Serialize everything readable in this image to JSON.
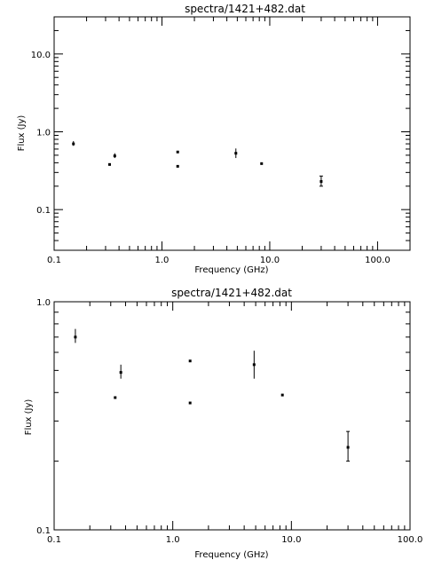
{
  "chart_data": [
    {
      "type": "scatter",
      "title": "spectra/1421+482.dat",
      "xlabel": "Frequency (GHz)",
      "ylabel": "Flux (Jy)",
      "xscale": "log",
      "yscale": "log",
      "xlim": [
        0.1,
        200
      ],
      "ylim": [
        0.03,
        30
      ],
      "xticks": [
        {
          "v": 0.1,
          "label": "0.1"
        },
        {
          "v": 1,
          "label": "1.0"
        },
        {
          "v": 10,
          "label": "10.0"
        },
        {
          "v": 100,
          "label": "100.0"
        }
      ],
      "yticks": [
        {
          "v": 0.1,
          "label": "0.1"
        },
        {
          "v": 1,
          "label": "1.0"
        },
        {
          "v": 10,
          "label": "10.0"
        }
      ],
      "points": [
        {
          "x": 0.151,
          "y": 0.7,
          "lo": 0.66,
          "hi": 0.76
        },
        {
          "x": 0.327,
          "y": 0.38,
          "lo": 0.38,
          "hi": 0.38
        },
        {
          "x": 0.365,
          "y": 0.49,
          "lo": 0.46,
          "hi": 0.53
        },
        {
          "x": 1.4,
          "y": 0.55,
          "lo": 0.55,
          "hi": 0.55
        },
        {
          "x": 1.4,
          "y": 0.36,
          "lo": 0.36,
          "hi": 0.36
        },
        {
          "x": 4.85,
          "y": 0.53,
          "lo": 0.46,
          "hi": 0.61
        },
        {
          "x": 8.4,
          "y": 0.39,
          "lo": 0.39,
          "hi": 0.39
        },
        {
          "x": 30,
          "y": 0.23,
          "lo": 0.2,
          "hi": 0.27
        }
      ]
    },
    {
      "type": "scatter",
      "title": "spectra/1421+482.dat",
      "xlabel": "Frequency (GHz)",
      "ylabel": "Flux (Jy)",
      "xscale": "log",
      "yscale": "log",
      "xlim": [
        0.1,
        100
      ],
      "ylim": [
        0.1,
        1.0
      ],
      "xticks": [
        {
          "v": 0.1,
          "label": "0.1"
        },
        {
          "v": 1,
          "label": "1.0"
        },
        {
          "v": 10,
          "label": "10.0"
        },
        {
          "v": 100,
          "label": "100.0"
        }
      ],
      "yticks": [
        {
          "v": 0.1,
          "label": "0.1"
        },
        {
          "v": 1,
          "label": "1.0"
        }
      ],
      "points": [
        {
          "x": 0.151,
          "y": 0.7,
          "lo": 0.66,
          "hi": 0.76
        },
        {
          "x": 0.327,
          "y": 0.38,
          "lo": 0.38,
          "hi": 0.38
        },
        {
          "x": 0.365,
          "y": 0.49,
          "lo": 0.46,
          "hi": 0.53
        },
        {
          "x": 1.4,
          "y": 0.55,
          "lo": 0.55,
          "hi": 0.55
        },
        {
          "x": 1.4,
          "y": 0.36,
          "lo": 0.36,
          "hi": 0.36
        },
        {
          "x": 4.85,
          "y": 0.53,
          "lo": 0.46,
          "hi": 0.61
        },
        {
          "x": 8.4,
          "y": 0.39,
          "lo": 0.39,
          "hi": 0.39
        },
        {
          "x": 30,
          "y": 0.23,
          "lo": 0.2,
          "hi": 0.27
        }
      ]
    }
  ]
}
